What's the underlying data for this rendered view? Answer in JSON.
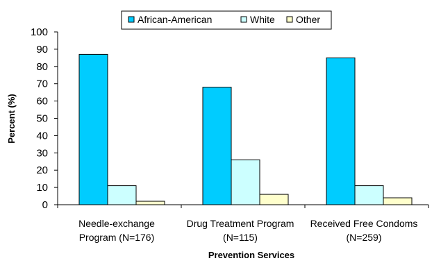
{
  "chart_data": {
    "type": "bar",
    "title": "",
    "xlabel": "Prevention Services",
    "ylabel": "Percent (%)",
    "ylim": [
      0,
      100
    ],
    "yticks": [
      0,
      10,
      20,
      30,
      40,
      50,
      60,
      70,
      80,
      90,
      100
    ],
    "grid": false,
    "legend_position": "top",
    "categories": [
      [
        "Needle-exchange",
        "Program (N=176)"
      ],
      [
        "Drug Treatment Program",
        "(N=115)"
      ],
      [
        "Received Free Condoms",
        "(N=259)"
      ]
    ],
    "series": [
      {
        "name": "African-American",
        "color": "#00ccff",
        "values": [
          87,
          68,
          85
        ]
      },
      {
        "name": "White",
        "color": "#ccffff",
        "values": [
          11,
          26,
          11
        ]
      },
      {
        "name": "Other",
        "color": "#ffffcc",
        "values": [
          2,
          6,
          4
        ]
      }
    ]
  }
}
